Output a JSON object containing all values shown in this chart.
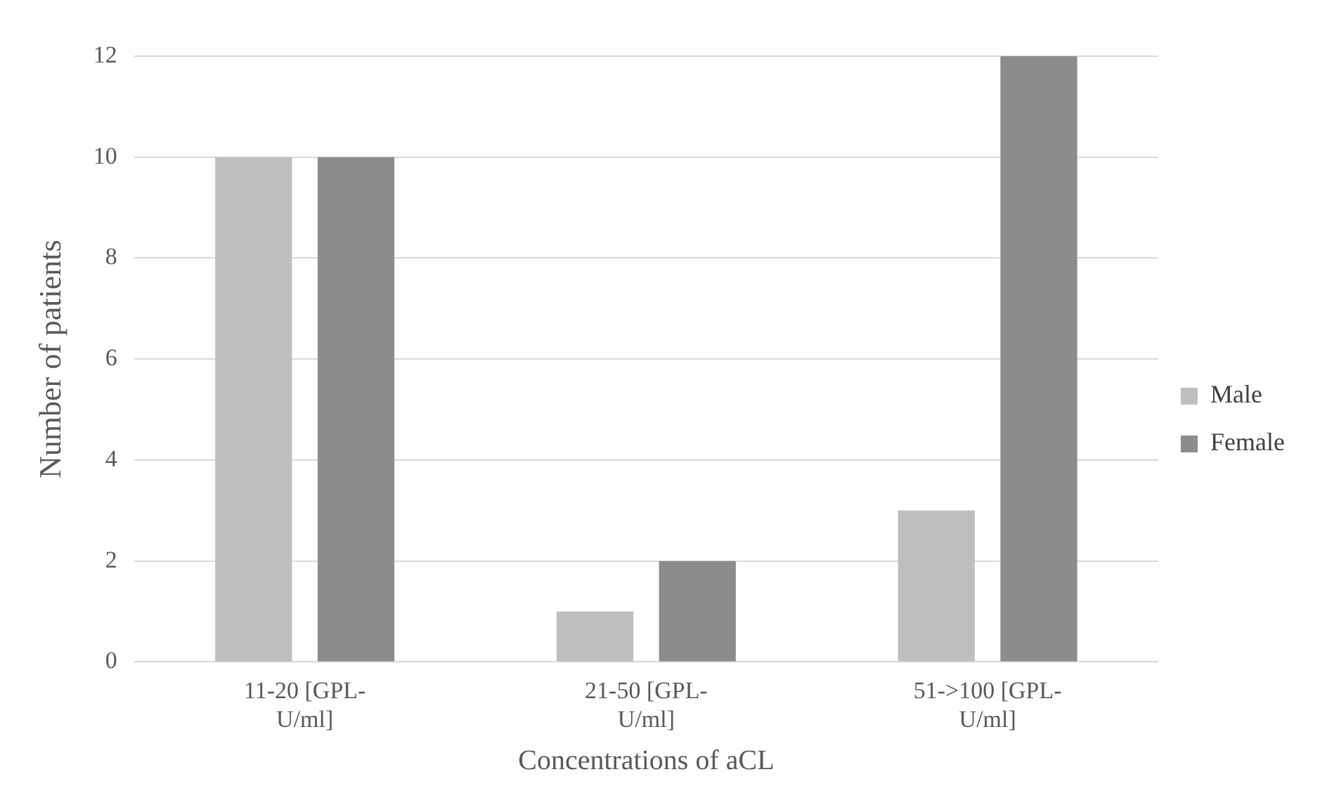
{
  "chart_data": {
    "type": "bar",
    "xlabel": "Concentrations of aCL",
    "ylabel": "Number of patients",
    "categories": [
      "11-20 [GPL-U/ml]",
      "21-50 [GPL-U/ml]",
      "51->100 [GPL-U/ml]"
    ],
    "series": [
      {
        "name": "Male",
        "color": "#bfbfbf",
        "values": [
          10,
          1,
          3
        ]
      },
      {
        "name": "Female",
        "color": "#8c8c8c",
        "values": [
          10,
          2,
          12
        ]
      }
    ],
    "ylim": [
      0,
      12
    ],
    "yticks": [
      0,
      2,
      4,
      6,
      8,
      10,
      12
    ],
    "grid": "y",
    "legend": "right"
  }
}
